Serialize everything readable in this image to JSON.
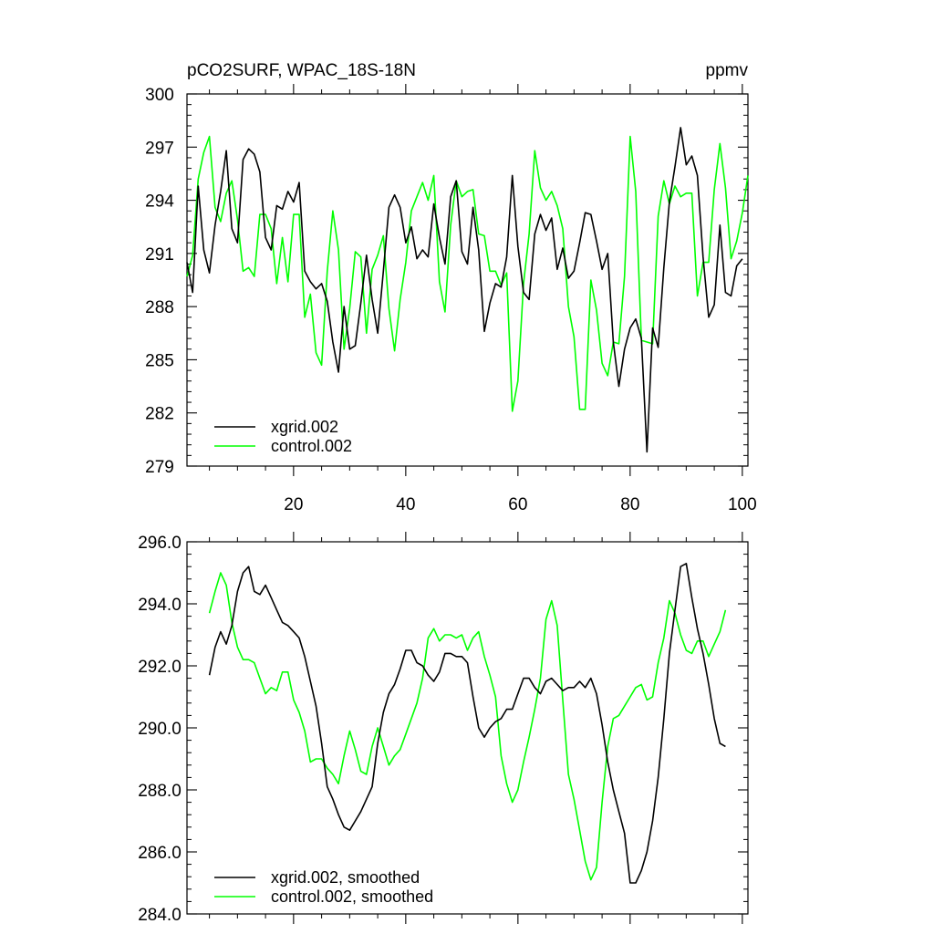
{
  "chart_data": [
    {
      "type": "line",
      "title": "pCO2SURF, WPAC_18S-18N",
      "units": "ppmv",
      "xlim": [
        1,
        101
      ],
      "ylim": [
        279,
        300
      ],
      "x_ticks": [
        20,
        40,
        60,
        80,
        100
      ],
      "y_ticks": [
        279,
        282,
        285,
        288,
        291,
        294,
        297,
        300
      ],
      "y_tick_labels": [
        "279",
        "282",
        "285",
        "288",
        "291",
        "294",
        "297",
        "300"
      ],
      "x_tick_labels": [
        "20",
        "40",
        "60",
        "80",
        "100"
      ],
      "legend_position": "bottom-left",
      "series": [
        {
          "name": "xgrid.002",
          "color": "#000000",
          "x_start": 1,
          "values": [
            290.5,
            288.8,
            294.8,
            291.2,
            289.9,
            292.6,
            294.5,
            296.8,
            292.4,
            291.6,
            296.3,
            296.9,
            296.6,
            295.6,
            291.9,
            291.2,
            293.7,
            293.5,
            294.5,
            293.9,
            295.0,
            290.0,
            289.4,
            289.0,
            289.3,
            288.3,
            286.0,
            284.3,
            288.0,
            285.6,
            285.8,
            288.2,
            290.9,
            288.4,
            286.5,
            290.0,
            293.6,
            294.3,
            293.6,
            291.6,
            292.5,
            290.7,
            291.2,
            290.8,
            293.8,
            291.9,
            290.4,
            294.2,
            295.1,
            291.1,
            290.4,
            293.6,
            291.2,
            286.6,
            288.2,
            289.3,
            289.1,
            290.8,
            295.4,
            291.4,
            288.8,
            288.4,
            292.1,
            293.2,
            292.3,
            293.0,
            290.1,
            291.3,
            289.6,
            290.0,
            291.6,
            293.3,
            293.2,
            291.7,
            290.1,
            291.0,
            286.0,
            283.5,
            285.6,
            286.8,
            287.3,
            286.2,
            279.8,
            286.8,
            285.7,
            290.2,
            293.9,
            295.9,
            298.1,
            296.0,
            296.5,
            295.4,
            290.8,
            287.4,
            288.1,
            292.6,
            288.8,
            288.6,
            290.3,
            290.7
          ]
        },
        {
          "name": "control.002",
          "color": "#00ff00",
          "x_start": 1,
          "values": [
            289.7,
            290.9,
            295.2,
            296.7,
            297.6,
            293.6,
            292.8,
            294.4,
            295.1,
            292.9,
            290.0,
            290.2,
            289.7,
            293.2,
            293.2,
            292.4,
            289.3,
            291.9,
            289.4,
            293.2,
            293.2,
            287.4,
            288.7,
            285.4,
            284.7,
            290.0,
            293.4,
            291.2,
            285.6,
            287.9,
            291.1,
            290.8,
            286.5,
            290.1,
            290.9,
            292.0,
            287.9,
            285.5,
            288.4,
            290.5,
            293.4,
            294.2,
            295.0,
            294.0,
            295.4,
            289.4,
            287.7,
            292.6,
            295.1,
            294.2,
            294.5,
            294.6,
            292.1,
            292.0,
            290.0,
            290.0,
            289.2,
            289.9,
            282.1,
            283.8,
            289.3,
            292.1,
            296.8,
            294.7,
            294.0,
            294.5,
            293.7,
            292.4,
            288.0,
            286.3,
            282.2,
            282.2,
            289.5,
            287.8,
            284.8,
            284.1,
            286.0,
            285.9,
            289.7,
            297.6,
            294.5,
            286.1,
            286.0,
            285.9,
            293.1,
            295.1,
            293.8,
            294.8,
            294.2,
            294.4,
            294.4,
            288.6,
            290.5,
            290.5,
            294.6,
            297.2,
            294.7,
            290.7,
            291.7,
            293.3,
            295.4
          ]
        }
      ]
    },
    {
      "type": "line",
      "title": "",
      "xlim": [
        1,
        101
      ],
      "ylim": [
        284.0,
        296.0
      ],
      "y_ticks": [
        284.0,
        286.0,
        288.0,
        290.0,
        292.0,
        294.0,
        296.0
      ],
      "y_tick_labels": [
        "284.0",
        "286.0",
        "288.0",
        "290.0",
        "292.0",
        "294.0",
        "296.0"
      ],
      "legend_position": "bottom-left",
      "series": [
        {
          "name": "xgrid.002, smoothed",
          "color": "#000000",
          "x_start": 5,
          "values": [
            291.7,
            292.6,
            293.1,
            292.7,
            293.3,
            294.4,
            295.0,
            295.2,
            294.4,
            294.3,
            294.6,
            294.2,
            293.8,
            293.4,
            293.3,
            293.1,
            292.9,
            292.3,
            291.5,
            290.7,
            289.5,
            288.1,
            287.7,
            287.2,
            286.8,
            286.7,
            287.0,
            287.3,
            287.7,
            288.1,
            289.5,
            290.5,
            291.1,
            291.4,
            291.9,
            292.5,
            292.5,
            292.1,
            292.0,
            291.7,
            291.5,
            291.8,
            292.4,
            292.4,
            292.3,
            292.3,
            292.1,
            291.0,
            290.0,
            289.7,
            290.0,
            290.2,
            290.3,
            290.6,
            290.6,
            291.1,
            291.6,
            291.6,
            291.3,
            291.1,
            291.5,
            291.6,
            291.4,
            291.2,
            291.3,
            291.3,
            291.5,
            291.3,
            291.6,
            291.1,
            290.1,
            288.9,
            288.0,
            287.3,
            286.6,
            285.0,
            285.0,
            285.4,
            286.0,
            287.0,
            288.4,
            290.3,
            292.4,
            293.8,
            295.2,
            295.3,
            294.2,
            293.2,
            292.4,
            291.4,
            290.3,
            289.5,
            289.4
          ]
        },
        {
          "name": "control.002, smoothed",
          "color": "#00ff00",
          "x_start": 5,
          "values": [
            293.7,
            294.4,
            295.0,
            294.6,
            293.4,
            292.6,
            292.2,
            292.2,
            292.1,
            291.6,
            291.1,
            291.3,
            291.2,
            291.8,
            291.8,
            290.9,
            290.5,
            289.9,
            288.9,
            289.0,
            289.0,
            288.7,
            288.5,
            288.2,
            289.1,
            289.9,
            289.3,
            288.6,
            288.5,
            289.4,
            290.0,
            289.4,
            288.8,
            289.1,
            289.3,
            289.8,
            290.3,
            290.8,
            291.6,
            292.9,
            293.2,
            292.8,
            293.0,
            293.0,
            292.9,
            293.0,
            292.5,
            292.9,
            293.1,
            292.3,
            291.7,
            291.0,
            289.1,
            288.2,
            287.6,
            288.0,
            288.9,
            289.7,
            290.6,
            291.6,
            293.5,
            294.1,
            293.3,
            290.9,
            288.5,
            287.7,
            286.7,
            285.7,
            285.1,
            285.5,
            287.6,
            289.4,
            290.3,
            290.4,
            290.7,
            291.0,
            291.3,
            291.4,
            290.9,
            291.0,
            292.1,
            292.9,
            294.1,
            293.7,
            293.0,
            292.5,
            292.4,
            292.8,
            292.8,
            292.3,
            292.7,
            293.1,
            293.8
          ]
        }
      ]
    }
  ]
}
